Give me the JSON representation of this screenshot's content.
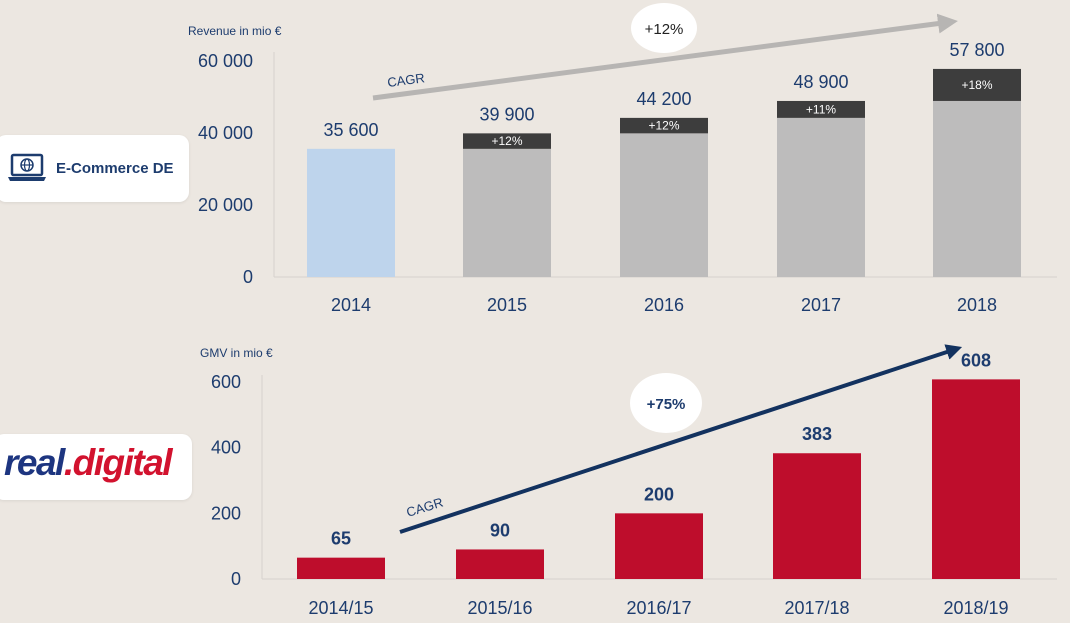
{
  "colors": {
    "navy": "#1d3c6e",
    "blue_bar": "#bed4ec",
    "grey_bar": "#bdbcbc",
    "dark_segment": "#3d3d3d",
    "red_bar": "#be0d2c",
    "cagr_arrow_top": "#b7b5b3",
    "cagr_arrow_bottom": "#13325f"
  },
  "logos": {
    "ecommerce_label": "E-Commerce DE",
    "ecommerce_icon": "laptop-globe-icon",
    "real_text": "real.digital"
  },
  "chart_data": [
    {
      "type": "bar",
      "ylabel": "Revenue in mio €",
      "ylim": [
        0,
        60000
      ],
      "yticks": [
        "0",
        "20 000",
        "40 000",
        "60 000"
      ],
      "categories": [
        "2014",
        "2015",
        "2016",
        "2017",
        "2018"
      ],
      "values": [
        35600,
        39900,
        44200,
        48900,
        57800
      ],
      "value_labels": [
        "35 600",
        "39 900",
        "44 200",
        "48 900",
        "57 800"
      ],
      "increments": [
        {
          "category": "2015",
          "label": "+12%"
        },
        {
          "category": "2016",
          "label": "+12%"
        },
        {
          "category": "2017",
          "label": "+11%"
        },
        {
          "category": "2018",
          "label": "+18%"
        }
      ],
      "cagr": {
        "label": "CAGR",
        "value": "+12%"
      }
    },
    {
      "type": "bar",
      "ylabel": "GMV in mio €",
      "ylim": [
        0,
        600
      ],
      "yticks": [
        "0",
        "200",
        "400",
        "600"
      ],
      "categories": [
        "2014/15",
        "2015/16",
        "2016/17",
        "2017/18",
        "2018/19"
      ],
      "values": [
        65,
        90,
        200,
        383,
        608
      ],
      "value_labels": [
        "65",
        "90",
        "200",
        "383",
        "608"
      ],
      "cagr": {
        "label": "CAGR",
        "value": "+75%"
      }
    }
  ]
}
